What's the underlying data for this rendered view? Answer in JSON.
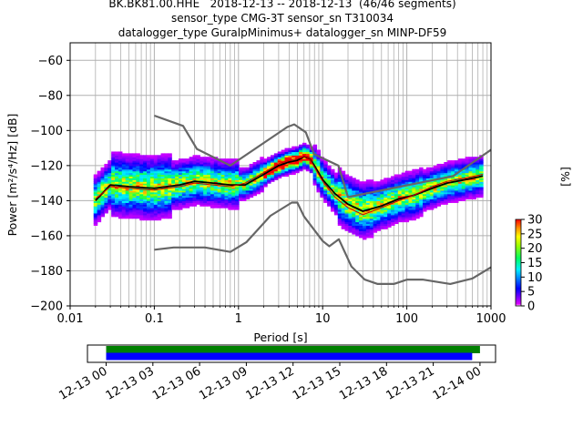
{
  "title": {
    "line1": "BK.BK81.00.HHE   2018-12-13 -- 2018-12-13  (46/46 segments)",
    "line2": "sensor_type CMG-3T sensor_sn T310034",
    "line3": "datalogger_type GuralpMinimus+ datalogger_sn MINP-DF59"
  },
  "colorbar": {
    "label": "[%]",
    "min": 0,
    "max": 30,
    "ticks": [
      "0",
      "5",
      "10",
      "15",
      "20",
      "25",
      "30"
    ]
  },
  "chart_data": [
    {
      "type": "heatmap",
      "xlabel": "Period [s]",
      "ylabel": "Power [m²/s⁴/Hz] [dB]",
      "xscale": "log",
      "xlim": [
        0.01,
        1000
      ],
      "ylim": [
        -200,
        -50
      ],
      "x_tick_labels": [
        "0.01",
        "0.1",
        "1",
        "10",
        "100",
        "1000"
      ],
      "y_tick_labels": [
        "−200",
        "−180",
        "−160",
        "−140",
        "−120",
        "−100",
        "−80",
        "−60"
      ],
      "y_ticks": [
        -200,
        -180,
        -160,
        -140,
        -120,
        -100,
        -80,
        -60
      ],
      "grid": true,
      "series": [
        {
          "role": "high-noise-model",
          "color": "#666666",
          "x": [
            0.1,
            0.22,
            0.32,
            0.8,
            3.8,
            4.6,
            6.3,
            7.9,
            15.4,
            20,
            354.8,
            1000
          ],
          "y": [
            -91.5,
            -97.4,
            -110.5,
            -120,
            -98,
            -96.5,
            -101,
            -113.5,
            -120,
            -138,
            -126,
            -111
          ]
        },
        {
          "role": "low-noise-model",
          "color": "#666666",
          "x": [
            0.1,
            0.17,
            0.4,
            0.8,
            1.24,
            2.4,
            4.3,
            5,
            6,
            10,
            12,
            15.6,
            21.9,
            31.6,
            45,
            70,
            101,
            154,
            328,
            600,
            1000
          ],
          "y": [
            -168,
            -166.7,
            -166.7,
            -169.2,
            -163.7,
            -148.6,
            -141.1,
            -141.1,
            -149,
            -163,
            -166,
            -162,
            -177.5,
            -185,
            -187.5,
            -187.5,
            -185,
            -185,
            -187.5,
            -184.4,
            -178
          ]
        },
        {
          "role": "mode",
          "color": "#000000",
          "x": [
            0.02,
            0.03,
            0.05,
            0.1,
            0.2,
            0.3,
            0.5,
            0.8,
            1.2,
            2,
            3,
            4,
            5,
            6,
            7,
            8,
            10,
            14,
            20,
            30,
            50,
            80,
            120,
            200,
            300,
            500,
            800
          ],
          "y": [
            -140,
            -131,
            -132,
            -133,
            -131,
            -129,
            -130,
            -131,
            -131,
            -125,
            -120,
            -118,
            -117,
            -115,
            -116,
            -120,
            -128,
            -136,
            -142,
            -146,
            -143,
            -139,
            -137,
            -133,
            -130,
            -128,
            -126
          ]
        },
        {
          "role": "mean",
          "color": "#cc0000",
          "x": [
            0.02,
            0.03,
            0.05,
            0.1,
            0.2,
            0.3,
            0.5,
            0.8,
            1.2,
            2,
            3,
            4,
            5,
            6,
            7,
            8,
            10,
            14,
            20,
            30,
            50,
            80,
            120,
            200,
            300,
            500,
            800
          ],
          "y": [
            -139,
            -132,
            -133,
            -134,
            -132,
            -130,
            -131,
            -132,
            -130,
            -124,
            -119,
            -117,
            -116,
            -115,
            -116,
            -121,
            -129,
            -138,
            -144,
            -148,
            -144,
            -140,
            -137,
            -132,
            -129,
            -127,
            -125
          ]
        }
      ]
    },
    {
      "type": "timeline",
      "x_tick_labels": [
        "12-13 00",
        "12-13 03",
        "12-13 06",
        "12-13 09",
        "12-13 12",
        "12-13 15",
        "12-13 18",
        "12-13 21",
        "12-14 00"
      ],
      "hours": [
        0,
        3,
        6,
        9,
        12,
        15,
        18,
        21,
        24
      ],
      "xlim_hours": [
        -1.2,
        25
      ],
      "bars": [
        {
          "color": "#008000",
          "start_hour": 0,
          "end_hour": 24.0
        },
        {
          "color": "#0000ff",
          "start_hour": 0,
          "end_hour": 23.5
        }
      ]
    }
  ]
}
